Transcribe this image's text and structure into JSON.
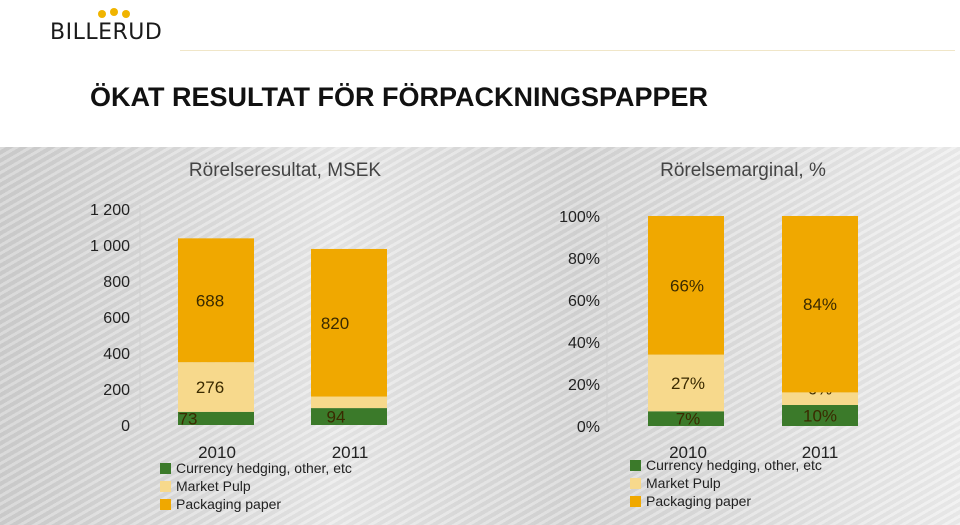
{
  "brand": {
    "name": "BILLERUD"
  },
  "title": "ÖKAT RESULTAT FÖR FÖRPACKNINGSPAPPER",
  "colors": {
    "currency": "#3b7a2a",
    "pulp": "#f7d98c",
    "packaging": "#f0a800"
  },
  "chart_data": [
    {
      "type": "bar",
      "title": "Rörelseresultat, MSEK",
      "categories": [
        "2010",
        "2011"
      ],
      "series": [
        {
          "name": "Currency hedging, other, etc",
          "values": [
            73,
            94
          ]
        },
        {
          "name": "Market Pulp",
          "values": [
            276,
            64
          ]
        },
        {
          "name": "Packaging paper",
          "values": [
            688,
            820
          ]
        }
      ],
      "ylim": [
        0,
        1200
      ],
      "yticks": [
        "0",
        "200",
        "400",
        "600",
        "800",
        "1 000",
        "1 200"
      ],
      "legend": "bottom"
    },
    {
      "type": "bar",
      "title": "Rörelsemarginal, %",
      "categories": [
        "2010",
        "2011"
      ],
      "series": [
        {
          "name": "Currency hedging, other, etc",
          "values": [
            7,
            10
          ],
          "labels": [
            "7%",
            "10%"
          ]
        },
        {
          "name": "Market Pulp",
          "values": [
            27,
            6
          ],
          "labels": [
            "27%",
            "6%"
          ]
        },
        {
          "name": "Packaging paper",
          "values": [
            66,
            84
          ],
          "labels": [
            "66%",
            "84%"
          ]
        }
      ],
      "ylim": [
        0,
        100
      ],
      "yticks": [
        "0%",
        "20%",
        "40%",
        "60%",
        "80%",
        "100%"
      ],
      "legend": "bottom"
    }
  ]
}
